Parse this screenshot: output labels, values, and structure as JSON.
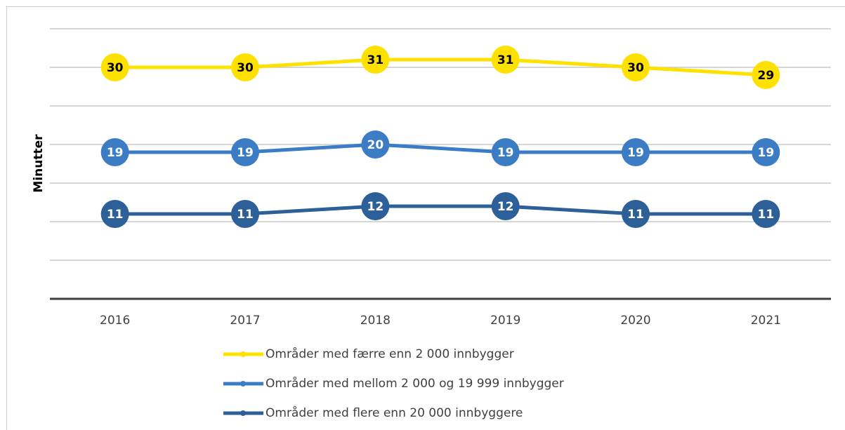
{
  "chart_data": {
    "type": "line",
    "y_label": "Minutter",
    "categories": [
      "2016",
      "2017",
      "2018",
      "2019",
      "2020",
      "2021"
    ],
    "series": [
      {
        "name": "Områder med færre enn 2 000 innbygger",
        "color": "#ffe100",
        "values": [
          30,
          30,
          31,
          31,
          30,
          29
        ]
      },
      {
        "name": "Områder med mellom 2 000 og 19 999 innbygger",
        "color": "#3b7cc4",
        "values": [
          19,
          19,
          20,
          19,
          19,
          19
        ]
      },
      {
        "name": "Områder med flere enn 20 000 innbyggere",
        "color": "#2d5f98",
        "values": [
          11,
          11,
          12,
          12,
          11,
          11
        ]
      }
    ],
    "ylim": [
      0,
      35
    ],
    "yticks": [
      0,
      5,
      10,
      15,
      20,
      25,
      30,
      35
    ],
    "grid": true
  }
}
